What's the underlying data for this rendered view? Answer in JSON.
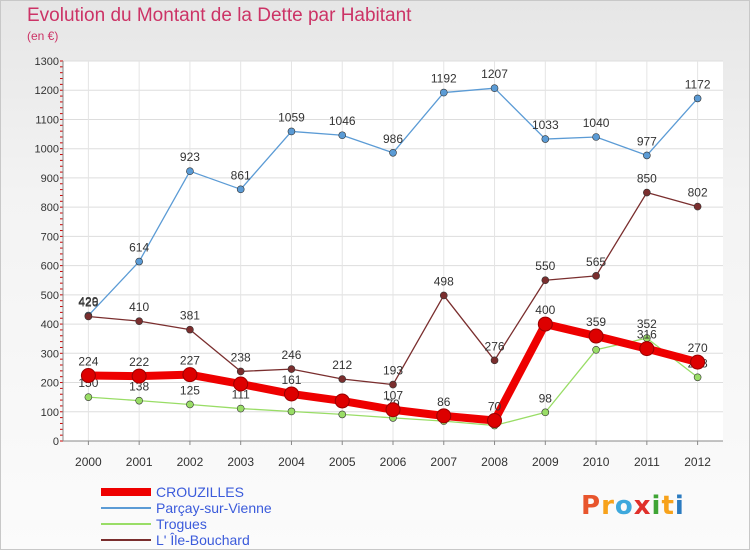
{
  "title": "Evolution du Montant de la Dette par Habitant",
  "unit_label": "(en €)",
  "logo": {
    "text": "Proxiti",
    "letter_colors": [
      "#e8552d",
      "#f7a21b",
      "#3ea8dc",
      "#e0302a",
      "#3fa535",
      "#f7a21b",
      "#2b7bc0"
    ]
  },
  "chart_data": {
    "type": "line",
    "x": [
      "2000",
      "2001",
      "2002",
      "2003",
      "2004",
      "2005",
      "2006",
      "2007",
      "2008",
      "2009",
      "2010",
      "2011",
      "2012"
    ],
    "ylim": [
      0,
      1300
    ],
    "yticks": [
      0,
      100,
      200,
      300,
      400,
      500,
      600,
      700,
      800,
      900,
      1000,
      1100,
      1200,
      1300
    ],
    "grid": true,
    "legend_position": "bottom-left",
    "series": [
      {
        "name": "CROUZILLES",
        "color": "#ee0000",
        "values": [
          224,
          222,
          227,
          195,
          161,
          137,
          107,
          86,
          70,
          400,
          359,
          316,
          270
        ],
        "labels": [
          "224",
          "222",
          "227",
          "",
          "161",
          "",
          "107",
          "86",
          "70",
          "400",
          "359",
          "316",
          "270"
        ]
      },
      {
        "name": "Parçay-sur-Vienne",
        "color": "#5b9bd5",
        "values": [
          429,
          614,
          923,
          861,
          1059,
          1046,
          986,
          1192,
          1207,
          1033,
          1040,
          977,
          1172
        ],
        "labels": [
          "429",
          "614",
          "923",
          "861",
          "1059",
          "1046",
          "986",
          "1192",
          "1207",
          "1033",
          "1040",
          "977",
          "1172"
        ]
      },
      {
        "name": "Trogues",
        "color": "#99dd66",
        "values": [
          150,
          138,
          125,
          111,
          101,
          91,
          79,
          68,
          53,
          98,
          312,
          352,
          218
        ],
        "labels": [
          "150",
          "138",
          "125",
          "111",
          "",
          "",
          "79",
          "",
          "",
          "98",
          "",
          "352",
          "218"
        ]
      },
      {
        "name": "L' Île-Bouchard",
        "color": "#7a2e2e",
        "values": [
          426,
          410,
          381,
          238,
          246,
          212,
          193,
          498,
          276,
          550,
          565,
          850,
          802
        ],
        "labels": [
          "426",
          "410",
          "381",
          "238",
          "246",
          "212",
          "193",
          "498",
          "276",
          "550",
          "565",
          "850",
          "802"
        ]
      }
    ]
  }
}
